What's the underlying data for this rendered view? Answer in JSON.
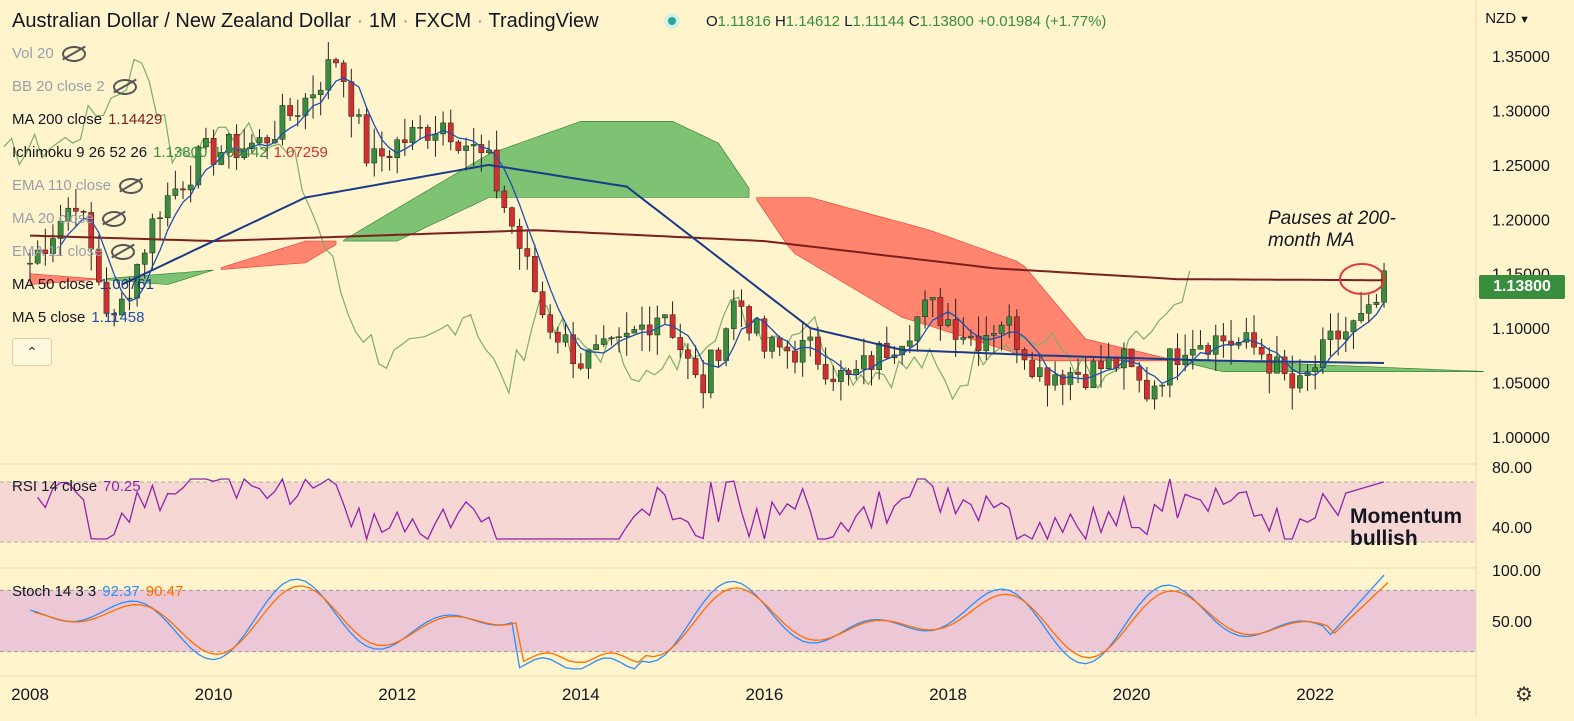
{
  "header": {
    "symbol": "Australian Dollar / New Zealand Dollar",
    "sep1": "·",
    "interval": "1M",
    "sep2": "·",
    "exchange": "FXCM",
    "sep3": "·",
    "source": "TradingView",
    "ohlc": {
      "o_label": "O",
      "o": "1.11816",
      "h_label": "H",
      "h": "1.14612",
      "l_label": "L",
      "l": "1.11144",
      "c_label": "C",
      "c": "1.13800",
      "change": "+0.01984 (+1.77%)"
    }
  },
  "legend": {
    "vol": {
      "label": "Vol 20"
    },
    "bb": {
      "label": "BB 20 close 2"
    },
    "ma200": {
      "label": "MA 200 close",
      "value": "1.14429"
    },
    "ichimoku": {
      "label": "Ichimoku 9 26 52 26",
      "v1": "1.13800",
      "v2": "1.09442",
      "v3": "1.07259"
    },
    "ema110": {
      "label": "EMA 110 close"
    },
    "ma20": {
      "label": "MA 20 close"
    },
    "ema11": {
      "label": "EMA 11 close"
    },
    "ma50": {
      "label": "MA 50 close",
      "value": "1.06761"
    },
    "ma5": {
      "label": "MA 5 close",
      "value": "1.11458"
    },
    "rsi": {
      "label": "RSI 14 close",
      "value": "70.25"
    },
    "stoch": {
      "label": "Stoch 14 3 3",
      "k": "92.37",
      "d": "90.47"
    }
  },
  "axis": {
    "currency": "NZD",
    "currency_icon": "chevron-down-icon",
    "last_price": "1.13800"
  },
  "annotations": {
    "pause_line1": "Pauses at 200-",
    "pause_line2": "month MA",
    "momentum_line1": "Momentum",
    "momentum_line2": "bullish"
  },
  "colors": {
    "bg": "#fff4cc",
    "up": "#388e3c",
    "down": "#d32f2f",
    "ma200": "#7b1f1f",
    "ma50": "#1a3a8a",
    "ma5": "#1e4fb0",
    "chikou": "#7cae6a",
    "cloud_bull": "#4caf50",
    "cloud_bear": "#ff5a4a",
    "rsi": "#8e24aa",
    "stoch_k": "#2a8ff7",
    "stoch_d": "#ff6d00",
    "price_tag": "#388e3c",
    "circle": "#e53935"
  },
  "chart_data": {
    "type": "candlestick",
    "symbol": "AUDNZD",
    "interval": "1M",
    "x_range": [
      "2007-12",
      "2023-12"
    ],
    "x_ticks": [
      "2008",
      "2010",
      "2012",
      "2014",
      "2016",
      "2018",
      "2020",
      "2022"
    ],
    "price_axis": {
      "ticks": [
        "1.35000",
        "1.30000",
        "1.25000",
        "1.20000",
        "1.15000",
        "1.10000",
        "1.05000",
        "1.00000"
      ],
      "range": [
        0.975,
        1.375
      ]
    },
    "price_anchors": [
      [
        2008.0,
        1.16
      ],
      [
        2008.5,
        1.22
      ],
      [
        2008.9,
        1.1
      ],
      [
        2009.4,
        1.21
      ],
      [
        2009.9,
        1.26
      ],
      [
        2010.5,
        1.27
      ],
      [
        2011.0,
        1.31
      ],
      [
        2011.35,
        1.35
      ],
      [
        2011.7,
        1.25
      ],
      [
        2012.0,
        1.27
      ],
      [
        2012.5,
        1.29
      ],
      [
        2013.0,
        1.25
      ],
      [
        2013.4,
        1.16
      ],
      [
        2013.6,
        1.11
      ],
      [
        2014.0,
        1.07
      ],
      [
        2014.4,
        1.08
      ],
      [
        2014.9,
        1.12
      ],
      [
        2015.3,
        1.04
      ],
      [
        2015.7,
        1.13
      ],
      [
        2016.0,
        1.08
      ],
      [
        2016.5,
        1.08
      ],
      [
        2016.9,
        1.05
      ],
      [
        2017.3,
        1.08
      ],
      [
        2017.8,
        1.12
      ],
      [
        2018.3,
        1.09
      ],
      [
        2018.6,
        1.11
      ],
      [
        2019.0,
        1.06
      ],
      [
        2019.5,
        1.06
      ],
      [
        2019.9,
        1.07
      ],
      [
        2020.15,
        1.04
      ],
      [
        2020.6,
        1.09
      ],
      [
        2021.0,
        1.09
      ],
      [
        2021.4,
        1.08
      ],
      [
        2021.8,
        1.04
      ],
      [
        2022.2,
        1.09
      ],
      [
        2022.6,
        1.11
      ],
      [
        2022.75,
        1.138
      ]
    ],
    "ma200": [
      [
        2008.0,
        1.185
      ],
      [
        2010.0,
        1.18
      ],
      [
        2013.5,
        1.19
      ],
      [
        2016.0,
        1.18
      ],
      [
        2018.5,
        1.155
      ],
      [
        2020.5,
        1.145
      ],
      [
        2022.75,
        1.144
      ]
    ],
    "ma50": [
      [
        2009.0,
        1.14
      ],
      [
        2011.0,
        1.22
      ],
      [
        2013.0,
        1.25
      ],
      [
        2014.5,
        1.23
      ],
      [
        2016.5,
        1.1
      ],
      [
        2017.5,
        1.08
      ],
      [
        2019.0,
        1.075
      ],
      [
        2021.0,
        1.07
      ],
      [
        2022.75,
        1.068
      ]
    ],
    "ichimoku_span_a": [
      [
        2008.0,
        1.14
      ],
      [
        2009.5,
        1.15
      ],
      [
        2011.0,
        1.16
      ],
      [
        2012.0,
        1.21
      ],
      [
        2013.0,
        1.26
      ],
      [
        2014.0,
        1.29
      ],
      [
        2015.0,
        1.29
      ],
      [
        2015.5,
        1.27
      ],
      [
        2016.3,
        1.17
      ],
      [
        2017.5,
        1.11
      ],
      [
        2019.0,
        1.07
      ],
      [
        2021.0,
        1.07
      ],
      [
        2023.9,
        1.06
      ]
    ],
    "ichimoku_span_b": [
      [
        2008.0,
        1.15
      ],
      [
        2009.5,
        1.14
      ],
      [
        2011.0,
        1.18
      ],
      [
        2012.0,
        1.18
      ],
      [
        2013.0,
        1.22
      ],
      [
        2015.5,
        1.22
      ],
      [
        2016.5,
        1.22
      ],
      [
        2017.8,
        1.19
      ],
      [
        2018.8,
        1.16
      ],
      [
        2019.5,
        1.09
      ],
      [
        2021.0,
        1.06
      ],
      [
        2023.9,
        1.06
      ]
    ],
    "rsi": {
      "range": [
        30,
        80
      ],
      "ticks": [
        "80.00",
        "40.00"
      ],
      "bands": [
        70,
        30
      ],
      "last": 70.25
    },
    "stochastic": {
      "range": [
        0,
        100
      ],
      "ticks": [
        "100.00",
        "50.00"
      ],
      "bands": [
        80,
        20
      ],
      "k_last": 92.37,
      "d_last": 90.47
    }
  }
}
